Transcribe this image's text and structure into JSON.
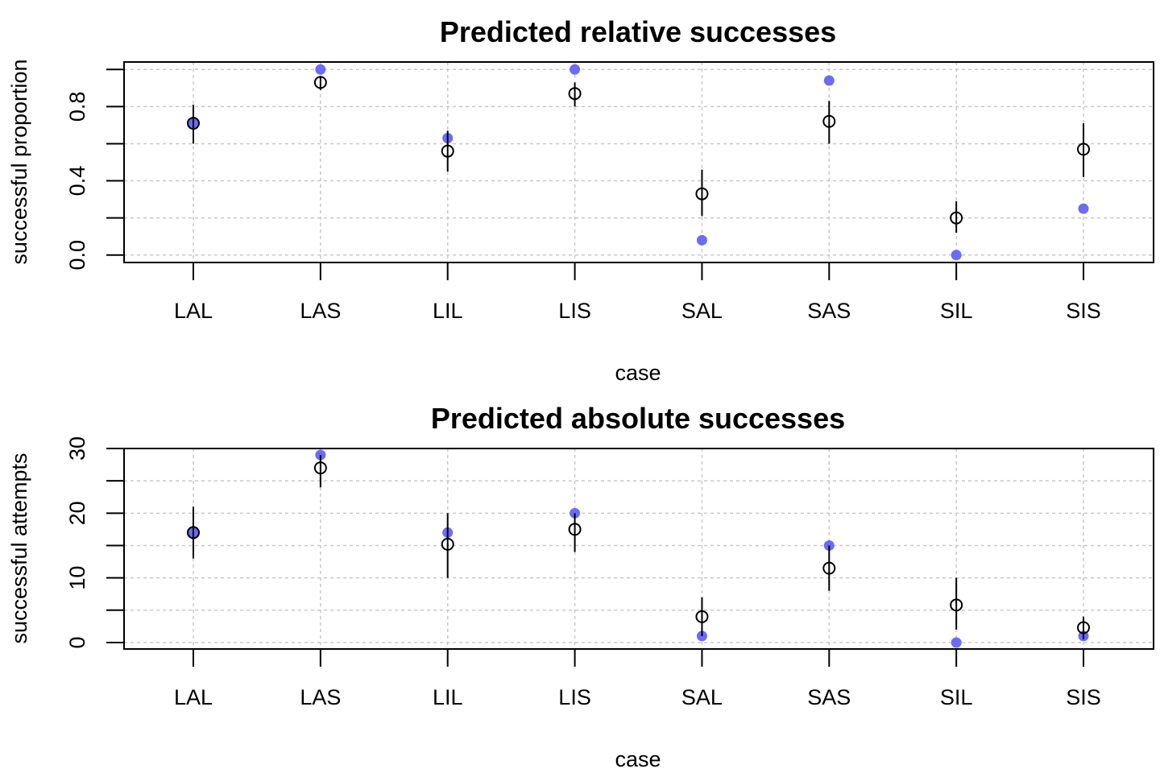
{
  "chart_data": [
    {
      "type": "scatter",
      "title": "Predicted relative successes",
      "xlabel": "case",
      "ylabel": "successful proportion",
      "categories": [
        "LAL",
        "LAS",
        "LIL",
        "LIS",
        "SAL",
        "SAS",
        "SIL",
        "SIS"
      ],
      "ylim": [
        -0.04,
        1.04
      ],
      "yticks": [
        0.0,
        0.4,
        0.8
      ],
      "ytick_labels": [
        "0.0",
        "0.4",
        "0.8"
      ],
      "ygrid": [
        0.0,
        0.2,
        0.4,
        0.6,
        0.8,
        1.0
      ],
      "grid": true,
      "series": [
        {
          "role": "observed",
          "color": "#6b6bf5",
          "values": [
            0.71,
            1.0,
            0.63,
            1.0,
            0.08,
            0.94,
            0.0,
            0.25
          ]
        },
        {
          "role": "predicted",
          "color": "#000000",
          "values": [
            0.71,
            0.93,
            0.56,
            0.87,
            0.33,
            0.72,
            0.2,
            0.57
          ],
          "lower": [
            0.6,
            0.89,
            0.45,
            0.8,
            0.21,
            0.6,
            0.12,
            0.42
          ],
          "upper": [
            0.81,
            0.96,
            0.67,
            0.93,
            0.46,
            0.83,
            0.29,
            0.71
          ]
        }
      ]
    },
    {
      "type": "scatter",
      "title": "Predicted absolute successes",
      "xlabel": "case",
      "ylabel": "successful attempts",
      "categories": [
        "LAL",
        "LAS",
        "LIL",
        "LIS",
        "SAL",
        "SAS",
        "SIL",
        "SIS"
      ],
      "ylim": [
        -1.0,
        30.0
      ],
      "yticks": [
        0,
        10,
        20,
        30
      ],
      "ytick_labels": [
        "0",
        "10",
        "20",
        "30"
      ],
      "ygrid": [
        0,
        5,
        10,
        15,
        20,
        25,
        30
      ],
      "grid": true,
      "series": [
        {
          "role": "observed",
          "color": "#6b6bf5",
          "values": [
            17,
            29,
            17,
            20,
            1,
            15,
            0,
            1
          ]
        },
        {
          "role": "predicted",
          "color": "#000000",
          "values": [
            17,
            27,
            15.2,
            17.5,
            4,
            11.5,
            5.8,
            2.3
          ],
          "lower": [
            13,
            24,
            10,
            14,
            1,
            8,
            2,
            0.5
          ],
          "upper": [
            21,
            29,
            20,
            20,
            7,
            15,
            10,
            4
          ]
        }
      ]
    }
  ]
}
